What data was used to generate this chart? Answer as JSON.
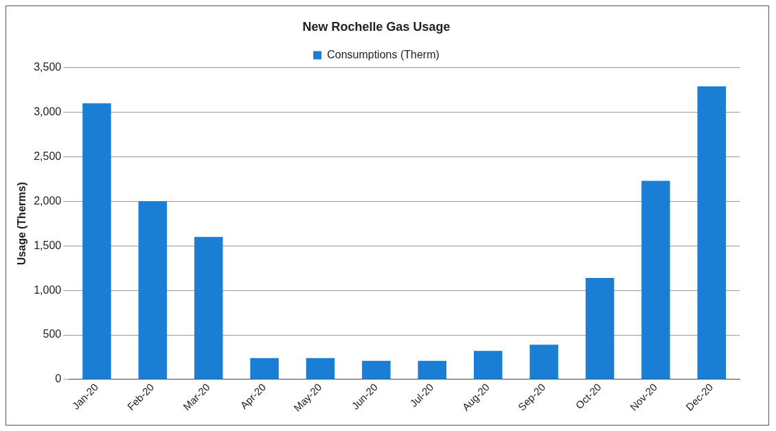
{
  "chart_data": {
    "type": "bar",
    "title": "New Rochelle Gas Usage",
    "ylabel": "Usage (Therms)",
    "categories": [
      "Jan-20",
      "Feb-20",
      "Mar-20",
      "Apr-20",
      "May-20",
      "Jun-20",
      "Jul-20",
      "Aug-20",
      "Sep-20",
      "Oct-20",
      "Nov-20",
      "Dec-20"
    ],
    "series": [
      {
        "name": "Consumptions (Therm)",
        "color": "#1a7fd4",
        "values": [
          3100,
          2000,
          1600,
          240,
          240,
          210,
          210,
          320,
          390,
          1140,
          2230,
          3290
        ]
      }
    ],
    "ylim": [
      0,
      3500
    ],
    "yticks": [
      {
        "value": 0,
        "label": "0"
      },
      {
        "value": 500,
        "label": "500"
      },
      {
        "value": 1000,
        "label": "1,000"
      },
      {
        "value": 1500,
        "label": "1,500"
      },
      {
        "value": 2000,
        "label": "2,000"
      },
      {
        "value": 2500,
        "label": "2,500"
      },
      {
        "value": 3000,
        "label": "3,000"
      },
      {
        "value": 3500,
        "label": "3,500"
      }
    ],
    "grid": "y",
    "legend": "top"
  }
}
